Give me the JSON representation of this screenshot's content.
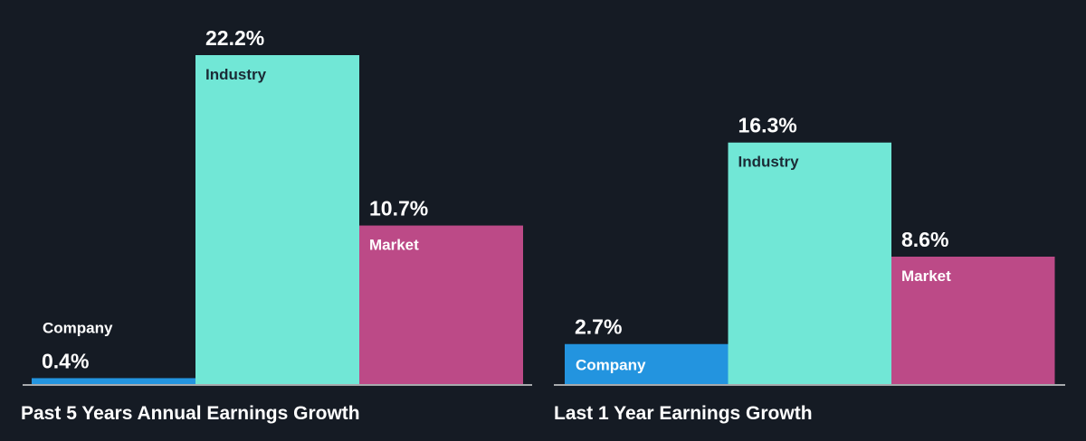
{
  "colors": {
    "background": "#151b24",
    "company": "#2394df",
    "industry": "#71e7d6",
    "market": "#bc4a87",
    "baseline": "#ffffff",
    "text": "#ffffff",
    "dark_text": "#1b2b36"
  },
  "chart_data": [
    {
      "type": "bar",
      "title": "Past 5 Years Annual Earnings Growth",
      "categories": [
        "Company",
        "Industry",
        "Market"
      ],
      "values": [
        0.4,
        22.2,
        10.7
      ],
      "value_labels": [
        "0.4%",
        "22.2%",
        "10.7%"
      ],
      "ylim": [
        0,
        22.2
      ],
      "grid": false,
      "legend": "none"
    },
    {
      "type": "bar",
      "title": "Last 1 Year Earnings Growth",
      "categories": [
        "Company",
        "Industry",
        "Market"
      ],
      "values": [
        2.7,
        16.3,
        8.6
      ],
      "value_labels": [
        "2.7%",
        "16.3%",
        "8.6%"
      ],
      "ylim": [
        0,
        22.2
      ],
      "grid": false,
      "legend": "none"
    }
  ]
}
